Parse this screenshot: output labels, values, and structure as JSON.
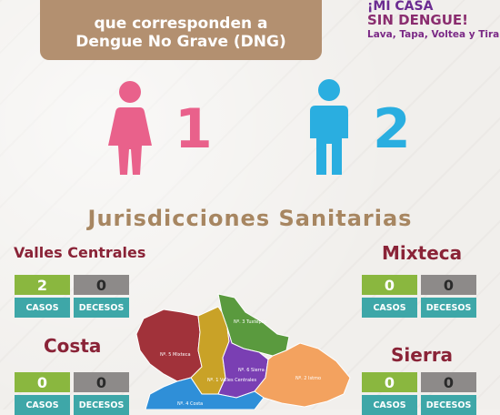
{
  "banner": {
    "line1": "que corresponden a",
    "line2": "Dengue No Grave (DNG)"
  },
  "brand": {
    "line1": "¡MI CASA",
    "line2": "SIN DENGUE!",
    "line3": "Lava, Tapa, Voltea y Tira"
  },
  "cases": {
    "female": {
      "icon": "female-person-icon",
      "count": "1",
      "color": "#e9618b"
    },
    "male": {
      "icon": "male-person-icon",
      "count": "2",
      "color": "#2aaee0"
    }
  },
  "title": "Jurisdicciones Sanitarias",
  "regions": [
    {
      "id": "valles-centrales",
      "name": "Valles Centrales",
      "casos": "2",
      "decesos": "0"
    },
    {
      "id": "mixteca",
      "name": "Mixteca",
      "casos": "0",
      "decesos": "0"
    },
    {
      "id": "costa",
      "name": "Costa",
      "casos": "0",
      "decesos": "0"
    },
    {
      "id": "sierra",
      "name": "Sierra",
      "casos": "0",
      "decesos": "0"
    }
  ],
  "labels": {
    "casos": "CASOS",
    "decesos": "DECESOS"
  },
  "map": {
    "labels": [
      "Nº. 3 Tuxtepec",
      "Nº. 5 Mixteca",
      "Nº. 1 Valles Centrales",
      "Nº. 6 Sierra",
      "Nº. 2 Istmo",
      "Nº. 4 Costa"
    ],
    "colors": {
      "tuxtepec": "#5a9a3e",
      "mixteca": "#a1323a",
      "valles": "#c9a227",
      "sierra": "#7a3fb3",
      "istmo": "#f3a25f",
      "costa": "#2f8fd8"
    }
  }
}
